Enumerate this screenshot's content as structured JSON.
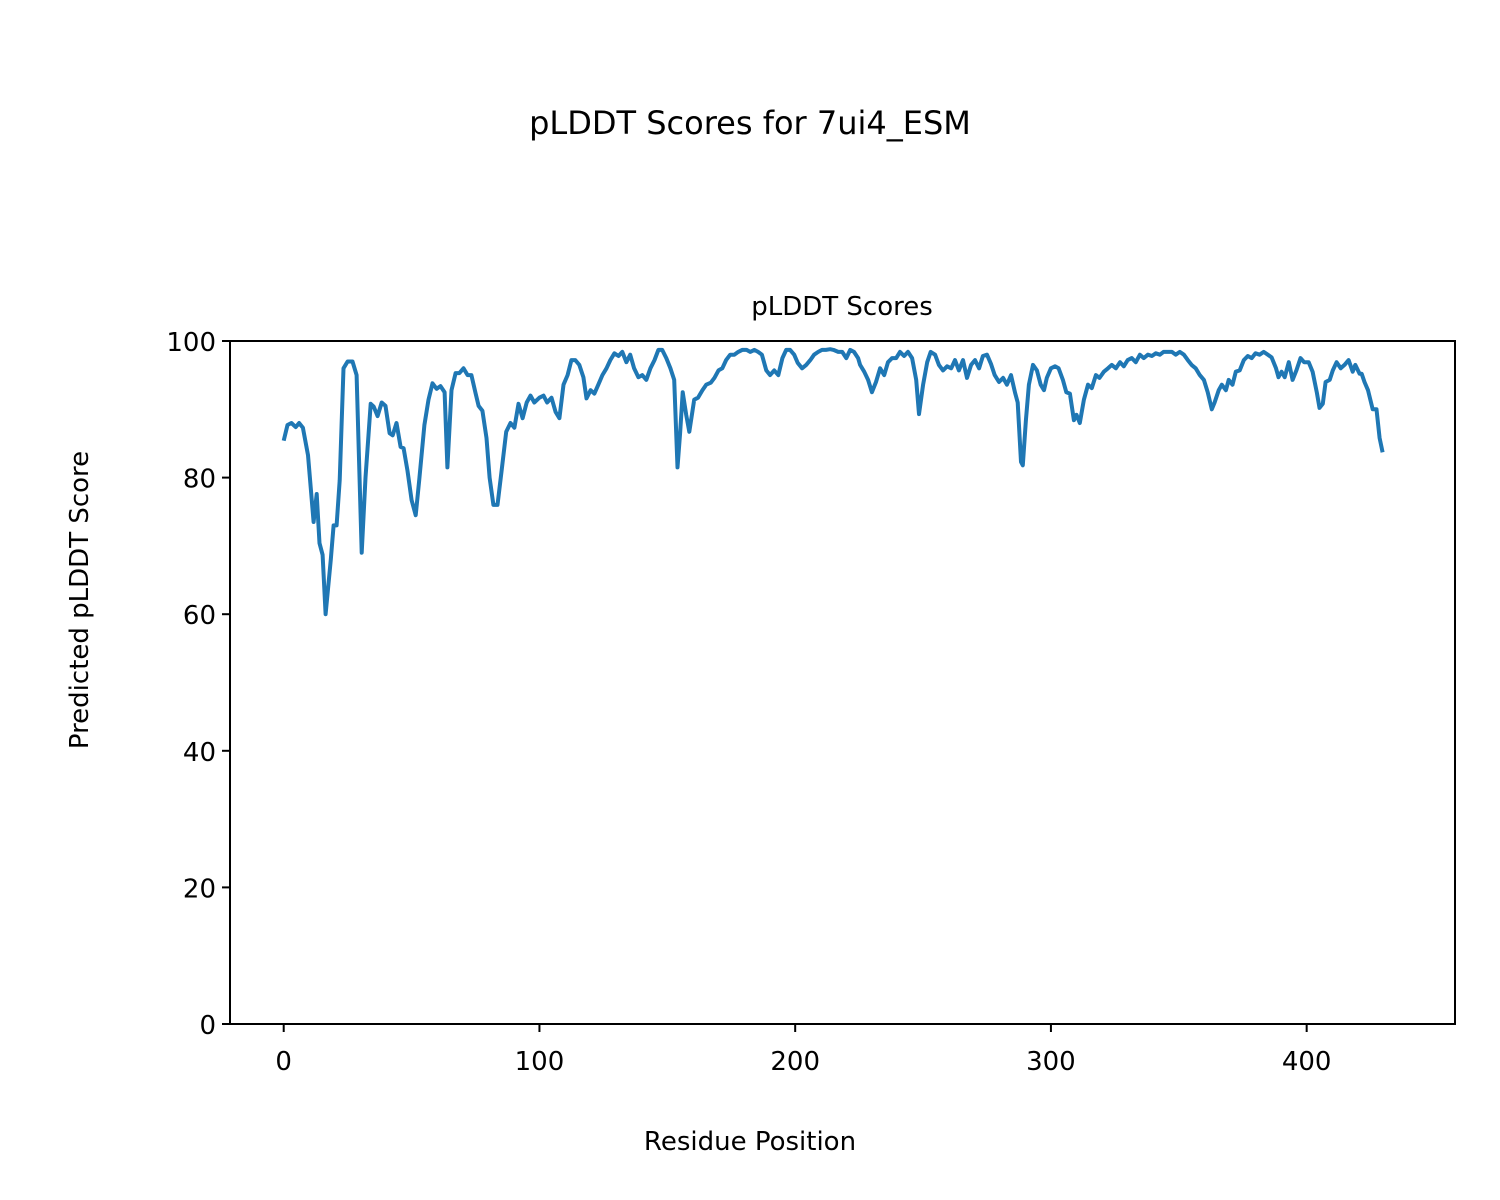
{
  "chart_data": {
    "type": "line",
    "suptitle": "pLDDT Scores for 7ui4_ESM",
    "title": "pLDDT Scores",
    "xlabel": "Residue Position",
    "ylabel": "Predicted pLDDT Score",
    "xlim": [
      -21,
      458
    ],
    "ylim": [
      0,
      100
    ],
    "xticks": [
      0,
      100,
      200,
      300,
      400
    ],
    "yticks": [
      0,
      20,
      40,
      60,
      80,
      100
    ],
    "xtick_labels": [
      "0",
      "100",
      "200",
      "300",
      "400"
    ],
    "ytick_labels": [
      "0",
      "20",
      "40",
      "60",
      "80",
      "100"
    ],
    "grid": false,
    "series": [
      {
        "name": "pLDDT",
        "color": "#1f77b4",
        "x": [
          0,
          1.5,
          3,
          4.7,
          6,
          7.5,
          9.5,
          11.7,
          12.9,
          14,
          15.2,
          16.4,
          18.4,
          19.5,
          20.7,
          21.9,
          23.4,
          25,
          26.9,
          28.5,
          30.5,
          32,
          34,
          35.2,
          36.7,
          38.3,
          39.8,
          41.4,
          42.6,
          44.1,
          45.7,
          46.9,
          48.4,
          50,
          51.6,
          53,
          55,
          56.6,
          58.2,
          59.8,
          61.3,
          62.9,
          64,
          65.6,
          67.2,
          68.7,
          70.3,
          71.9,
          73.4,
          75,
          76.2,
          77.7,
          79.3,
          80.5,
          82,
          83.6,
          85.2,
          87,
          88.7,
          90.2,
          91.8,
          93.4,
          95,
          96.5,
          98,
          100,
          101.6,
          103,
          104.7,
          106.3,
          107.8,
          109.4,
          111,
          112.5,
          114,
          115.6,
          117.2,
          118.4,
          120,
          121.5,
          123,
          124.6,
          126.2,
          127.7,
          129.3,
          130.9,
          132.4,
          134,
          135.5,
          137,
          138.7,
          140.2,
          141.8,
          143.4,
          145,
          146.5,
          148,
          149.6,
          151.2,
          152.7,
          154,
          155,
          156,
          157.4,
          158.6,
          160.5,
          162,
          163.7,
          165.2,
          167,
          168.4,
          170,
          171.5,
          173,
          174.6,
          176.2,
          177.7,
          179.3,
          181,
          182.4,
          184,
          185.5,
          187,
          188.7,
          190.2,
          191.8,
          193.4,
          195,
          196.5,
          198,
          199.6,
          201,
          202.7,
          204.3,
          205.9,
          207.4,
          209,
          210.5,
          212,
          213.7,
          215,
          216.8,
          218.4,
          220,
          221.5,
          223,
          224.6,
          225.4,
          227,
          228.5,
          230,
          231.6,
          233.2,
          234.8,
          236.3,
          237.9,
          239.5,
          241,
          242.6,
          244.1,
          245.7,
          247.3,
          248.4,
          250,
          251.6,
          253,
          254.7,
          256.2,
          257.8,
          259.4,
          261,
          262.5,
          264,
          265.6,
          267.2,
          268.8,
          270.3,
          271.9,
          273.4,
          275,
          276.6,
          278,
          279.7,
          281.3,
          282.8,
          284.4,
          286,
          287,
          288.3,
          289,
          290.2,
          291.4,
          293,
          294.5,
          296,
          297.3,
          298.4,
          300,
          301.6,
          303,
          304.7,
          306,
          307.4,
          309,
          310,
          311.3,
          312.9,
          314.5,
          316,
          317.6,
          319,
          320.7,
          322.3,
          323.8,
          325.4,
          327,
          328.5,
          330,
          331.6,
          333.2,
          334.8,
          336.3,
          337.9,
          339.5,
          341,
          342.6,
          344,
          345.7,
          347.3,
          348.8,
          350.4,
          352,
          353.5,
          355,
          356.6,
          358.2,
          359.8,
          361.3,
          362.9,
          364,
          365.6,
          366.8,
          368.4,
          369.5,
          371,
          372.3,
          373.8,
          375.4,
          377,
          378.5,
          380,
          381.6,
          383.2,
          384.8,
          386.3,
          388,
          389,
          390.2,
          391.4,
          393,
          394.5,
          396,
          397.6,
          399,
          400.8,
          402.3,
          404,
          405,
          406.3,
          407.4,
          409,
          410.2,
          411.7,
          413.3,
          414.8,
          416.4,
          418,
          419,
          420.7,
          421.5,
          422.6,
          424,
          425.8,
          427.3,
          428.5,
          429.7
        ],
        "y": [
          85.4,
          87.7,
          88,
          87.4,
          88,
          87.3,
          83.3,
          73.5,
          77.6,
          70.4,
          68.7,
          60,
          68,
          73,
          73,
          79.6,
          96,
          97,
          97,
          95,
          69,
          80,
          90.8,
          90.4,
          89,
          91,
          90.5,
          86.5,
          86.2,
          88,
          84.5,
          84.3,
          81,
          76.7,
          74.5,
          79.6,
          87.7,
          91.4,
          93.8,
          93,
          93.4,
          92.5,
          81.5,
          92.8,
          95.3,
          95.3,
          96,
          95,
          95,
          92.4,
          90.5,
          89.8,
          85.8,
          80,
          76,
          76,
          81,
          86.7,
          88,
          87.3,
          90.8,
          88.7,
          91,
          92,
          91,
          91.7,
          92,
          91,
          91.7,
          89.6,
          88.7,
          93.6,
          95,
          97.2,
          97.2,
          96.5,
          94.7,
          91.6,
          92.8,
          92.3,
          93.6,
          95,
          96,
          97.2,
          98.2,
          97.8,
          98.4,
          96.9,
          98,
          96,
          94.7,
          95,
          94.3,
          96,
          97.2,
          98.7,
          98.7,
          97.5,
          96,
          94.3,
          81.5,
          86.5,
          92.5,
          89.2,
          86.7,
          91.4,
          91.7,
          92.8,
          93.6,
          93.9,
          94.6,
          95.7,
          96,
          97.2,
          98,
          98,
          98.4,
          98.7,
          98.7,
          98.4,
          98.7,
          98.4,
          98,
          95.7,
          95,
          95.7,
          95,
          97.5,
          98.7,
          98.7,
          98,
          96.8,
          96,
          96.5,
          97.2,
          98,
          98.4,
          98.7,
          98.7,
          98.8,
          98.7,
          98.4,
          98.4,
          97.5,
          98.7,
          98.4,
          97.5,
          96.5,
          95.5,
          94.3,
          92.5,
          94,
          96,
          95,
          96.9,
          97.5,
          97.5,
          98.4,
          97.8,
          98.4,
          97.5,
          94.3,
          89.3,
          93.6,
          96.9,
          98.4,
          98,
          96.5,
          95.7,
          96.3,
          96,
          97.2,
          95.7,
          97.2,
          94.6,
          96.5,
          97.2,
          96,
          97.8,
          98,
          96.6,
          95,
          94,
          94.6,
          93.6,
          95,
          92.4,
          91,
          82.3,
          81.8,
          88.4,
          93.6,
          96.5,
          95.7,
          93.6,
          92.8,
          94.6,
          96,
          96.3,
          96,
          94.3,
          92.5,
          92.3,
          88.4,
          89.2,
          88,
          91.4,
          93.6,
          93.1,
          95,
          94.6,
          95.5,
          96,
          96.5,
          96,
          96.9,
          96.3,
          97.2,
          97.5,
          96.9,
          98,
          97.5,
          98,
          97.8,
          98.2,
          98,
          98.4,
          98.4,
          98.4,
          98,
          98.4,
          98,
          97.2,
          96.5,
          96,
          95,
          94.3,
          92.5,
          90,
          91,
          92.8,
          93.6,
          92.8,
          94.3,
          93.6,
          95.5,
          95.7,
          97.2,
          97.8,
          97.5,
          98.2,
          98,
          98.4,
          98,
          97.6,
          96,
          94.7,
          95.5,
          94.7,
          96.9,
          94.3,
          95.7,
          97.5,
          96.9,
          96.9,
          95.5,
          92.4,
          90.2,
          90.8,
          94,
          94.3,
          95.7,
          96.9,
          96,
          96.5,
          97.2,
          95.5,
          96.5,
          95.2,
          95.2,
          94,
          92.8,
          90,
          90,
          85.8,
          83.7
        ]
      }
    ]
  }
}
